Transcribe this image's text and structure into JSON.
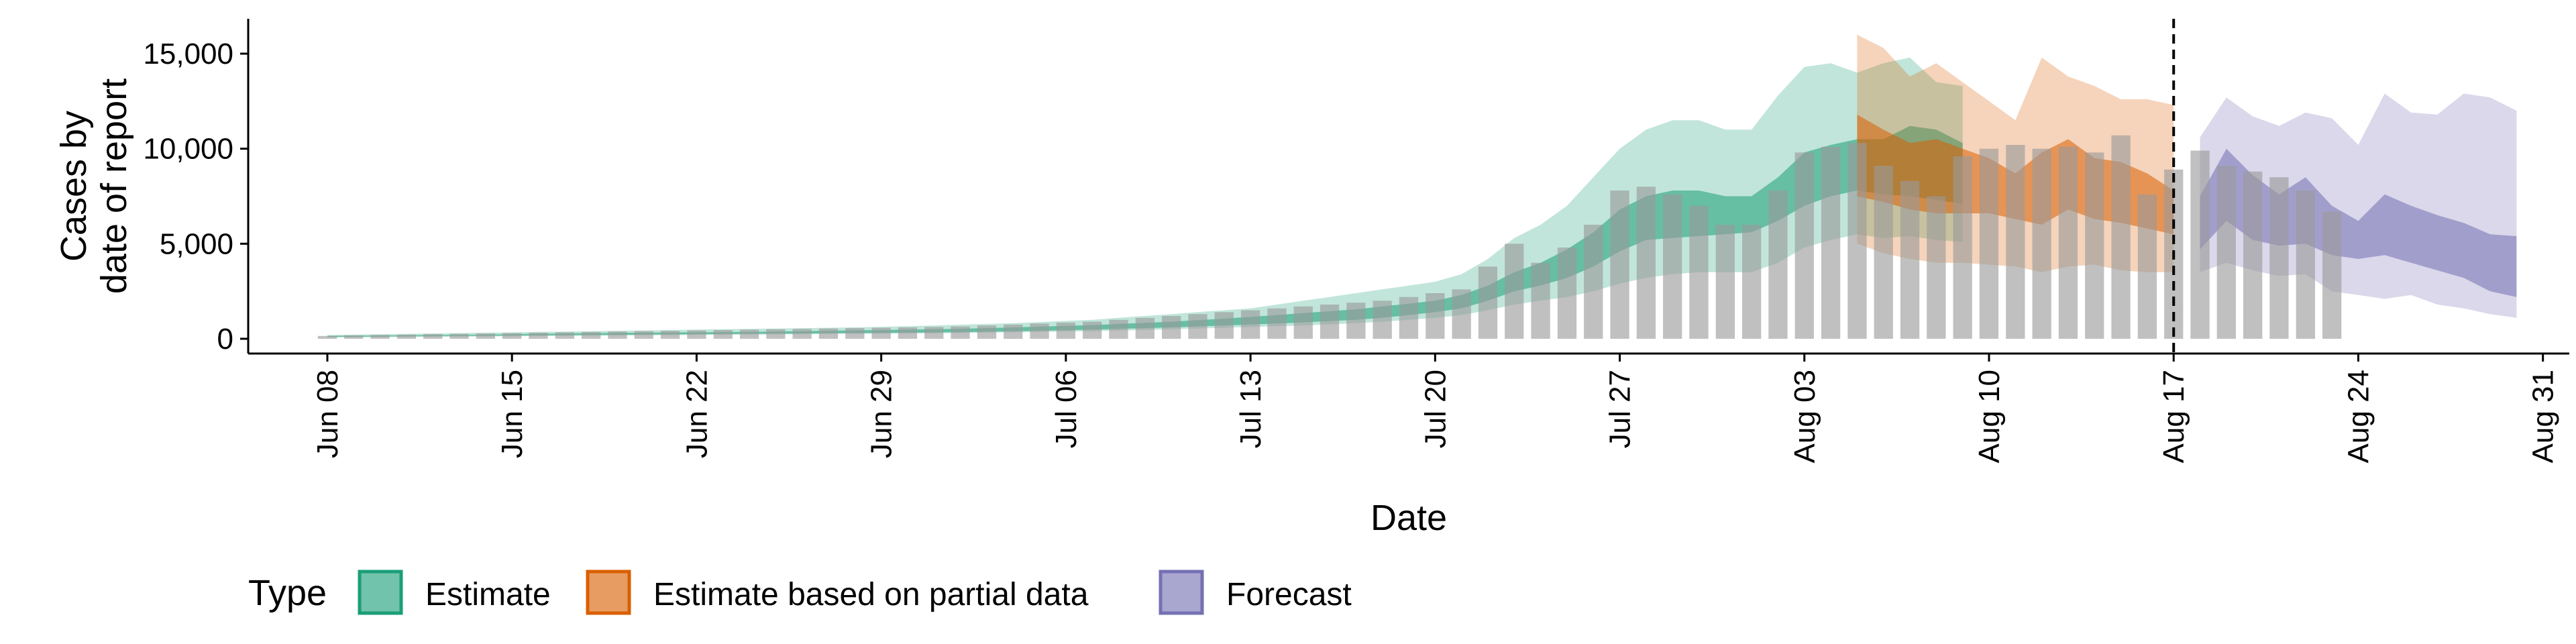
{
  "chart_data": {
    "type": "bar",
    "xlabel": "Date",
    "ylabel_lines": [
      "Cases by",
      "date of report"
    ],
    "ylim": [
      0,
      16800
    ],
    "xlim": [
      "2020-06-05",
      "2020-09-01"
    ],
    "y_ticks": [
      0,
      5000,
      10000,
      15000
    ],
    "y_tick_labels": [
      "0",
      "5,000",
      "10,000",
      "15,000"
    ],
    "x_ticks": [
      "2020-06-08",
      "2020-06-15",
      "2020-06-22",
      "2020-06-29",
      "2020-07-06",
      "2020-07-13",
      "2020-07-20",
      "2020-07-27",
      "2020-08-03",
      "2020-08-10",
      "2020-08-17",
      "2020-08-24",
      "2020-08-31"
    ],
    "x_tick_labels": [
      "Jun 08",
      "Jun 15",
      "Jun 22",
      "Jun 29",
      "Jul 06",
      "Jul 13",
      "Jul 20",
      "Jul 27",
      "Aug 03",
      "Aug 10",
      "Aug 17",
      "Aug 24",
      "Aug 31"
    ],
    "vline_date": "2020-08-17",
    "reported_cases": {
      "start_date": "2020-06-08",
      "values": [
        150,
        180,
        200,
        220,
        250,
        260,
        280,
        300,
        320,
        340,
        360,
        380,
        400,
        420,
        440,
        460,
        480,
        500,
        520,
        540,
        560,
        580,
        600,
        620,
        650,
        700,
        750,
        800,
        850,
        900,
        1000,
        1100,
        1200,
        1300,
        1400,
        1500,
        1600,
        1700,
        1800,
        1900,
        2000,
        2200,
        2400,
        2600,
        3800,
        5000,
        4000,
        4800,
        6000,
        7800,
        8000,
        7600,
        7000,
        6000,
        6000,
        7800,
        9800,
        10100,
        10300,
        9100,
        8300,
        7500,
        9600,
        10000,
        10200,
        10000,
        10100,
        9800,
        10700,
        7600,
        8900,
        9900,
        9100,
        8800,
        8500,
        7800,
        6700
      ]
    },
    "series": [
      {
        "name": "Estimate",
        "color": "#1B9E77",
        "start_date": "2020-06-08",
        "lower90": [
          60,
          70,
          80,
          90,
          100,
          110,
          120,
          130,
          140,
          150,
          160,
          170,
          180,
          190,
          200,
          210,
          220,
          230,
          240,
          250,
          260,
          270,
          280,
          290,
          300,
          320,
          340,
          360,
          380,
          400,
          430,
          460,
          500,
          540,
          580,
          620,
          660,
          700,
          760,
          820,
          900,
          1000,
          1100,
          1250,
          1500,
          1800,
          2000,
          2200,
          2500,
          2900,
          3200,
          3400,
          3500,
          3500,
          3500,
          4000,
          4800,
          5200,
          5500,
          5300,
          5400,
          5200,
          5100
        ],
        "lower50": [
          100,
          110,
          120,
          130,
          140,
          150,
          160,
          170,
          180,
          190,
          200,
          210,
          220,
          230,
          240,
          250,
          260,
          270,
          280,
          290,
          300,
          310,
          320,
          330,
          350,
          370,
          390,
          420,
          450,
          480,
          520,
          560,
          600,
          650,
          700,
          750,
          800,
          860,
          930,
          1000,
          1100,
          1250,
          1400,
          1600,
          2000,
          2500,
          2800,
          3200,
          3800,
          4600,
          5200,
          5300,
          5400,
          5500,
          5600,
          6200,
          7000,
          7500,
          7800,
          7600,
          7500,
          7300,
          7100
        ],
        "upper50": [
          150,
          160,
          170,
          180,
          190,
          200,
          220,
          240,
          260,
          280,
          300,
          310,
          320,
          330,
          340,
          350,
          360,
          380,
          400,
          420,
          440,
          460,
          480,
          500,
          530,
          560,
          600,
          640,
          680,
          720,
          780,
          840,
          900,
          980,
          1060,
          1150,
          1250,
          1350,
          1450,
          1550,
          1700,
          1850,
          2000,
          2300,
          2800,
          3500,
          4000,
          4700,
          5600,
          6800,
          7500,
          7800,
          7800,
          7500,
          7500,
          8500,
          9800,
          10200,
          10500,
          10500,
          11200,
          11000,
          10300
        ],
        "upper90": [
          200,
          220,
          240,
          260,
          280,
          300,
          320,
          340,
          360,
          380,
          400,
          420,
          440,
          460,
          480,
          500,
          520,
          540,
          560,
          580,
          600,
          630,
          660,
          700,
          740,
          780,
          820,
          880,
          940,
          1000,
          1100,
          1200,
          1300,
          1400,
          1500,
          1600,
          1800,
          2000,
          2200,
          2400,
          2600,
          2800,
          3000,
          3400,
          4200,
          5300,
          6000,
          7000,
          8500,
          10000,
          11000,
          11500,
          11500,
          11000,
          11000,
          12800,
          14300,
          14500,
          14000,
          14500,
          14800,
          13500,
          13300
        ]
      },
      {
        "name": "Estimate based on partial data",
        "color": "#D95F02",
        "start_date": "2020-08-05",
        "lower90": [
          5000,
          4500,
          4200,
          4000,
          4000,
          3900,
          3800,
          3500,
          3800,
          3900,
          3600,
          3500,
          3500
        ],
        "lower50": [
          7500,
          7200,
          6800,
          6600,
          6600,
          6600,
          6300,
          6000,
          6800,
          6300,
          6100,
          5800,
          5500
        ],
        "upper50": [
          11800,
          11000,
          10300,
          10500,
          10000,
          9500,
          8700,
          9800,
          10500,
          9500,
          9300,
          8700,
          7800
        ],
        "upper90": [
          16000,
          15300,
          13800,
          14500,
          13500,
          12500,
          11500,
          14800,
          13800,
          13300,
          12600,
          12600,
          12300
        ]
      },
      {
        "name": "Forecast",
        "color": "#7570B3",
        "start_date": "2020-08-18",
        "lower90": [
          3500,
          4000,
          3600,
          3300,
          3400,
          2500,
          2300,
          2100,
          2300,
          1800,
          1600,
          1300,
          1100
        ],
        "lower50": [
          4700,
          6200,
          5200,
          4900,
          5000,
          4400,
          4200,
          4400,
          4000,
          3600,
          3200,
          2500,
          2200
        ],
        "upper50": [
          7500,
          10000,
          8600,
          7600,
          8500,
          7000,
          6200,
          7600,
          7000,
          6500,
          6100,
          5500,
          5400
        ],
        "upper90": [
          10600,
          12700,
          11700,
          11200,
          11900,
          11600,
          10200,
          12900,
          11900,
          11800,
          12900,
          12700,
          12000
        ]
      }
    ],
    "legend": {
      "title": "Type",
      "position": "bottom-left",
      "items": [
        {
          "label": "Estimate",
          "color": "#1B9E77"
        },
        {
          "label": "Estimate based on partial data",
          "color": "#D95F02"
        },
        {
          "label": "Forecast",
          "color": "#7570B3"
        }
      ]
    }
  }
}
